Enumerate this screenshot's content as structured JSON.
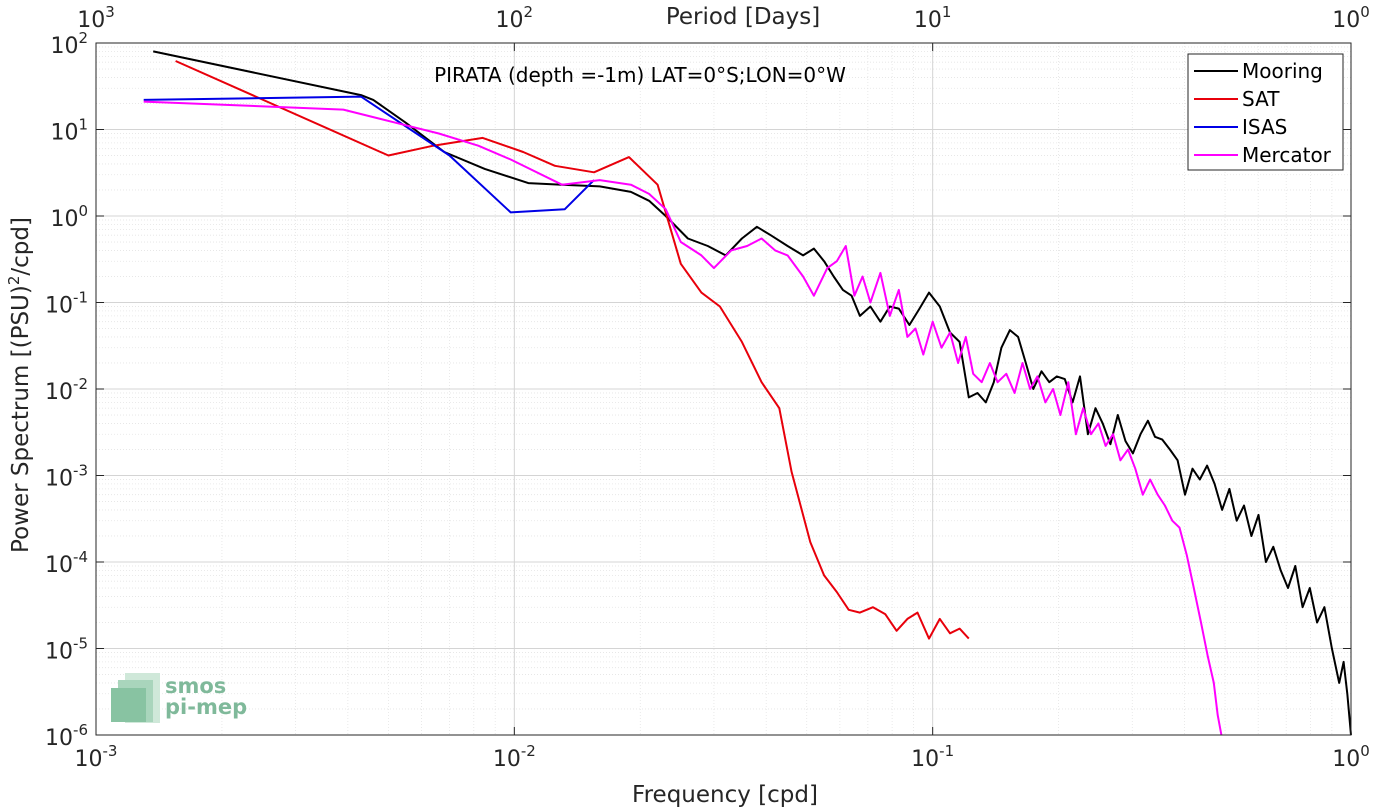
{
  "chart_data": {
    "type": "line",
    "title": "PIRATA (depth =-1m) LAT=0°S;LON=0°W",
    "xlabel": "Frequency [cpd]",
    "ylabel": "Power Spectrum [(PSU)",
    "ylabel_sup": "2",
    "ylabel_tail": "/cpd]",
    "top_xlabel": "Period [Days]",
    "xscale": "log",
    "yscale": "log",
    "xlim": [
      0.001,
      1
    ],
    "ylim": [
      1e-06,
      100
    ],
    "grid": true,
    "legend_position": "top-right",
    "x_ticks": [
      {
        "base": "10",
        "exp": "-3",
        "value": 0.001
      },
      {
        "base": "10",
        "exp": "-2",
        "value": 0.01
      },
      {
        "base": "10",
        "exp": "-1",
        "value": 0.1
      },
      {
        "base": "10",
        "exp": "0",
        "value": 1
      }
    ],
    "y_ticks": [
      {
        "base": "10",
        "exp": "-6",
        "value": 1e-06
      },
      {
        "base": "10",
        "exp": "-5",
        "value": 1e-05
      },
      {
        "base": "10",
        "exp": "-4",
        "value": 0.0001
      },
      {
        "base": "10",
        "exp": "-3",
        "value": 0.001
      },
      {
        "base": "10",
        "exp": "-2",
        "value": 0.01
      },
      {
        "base": "10",
        "exp": "-1",
        "value": 0.1
      },
      {
        "base": "10",
        "exp": "0",
        "value": 1
      },
      {
        "base": "10",
        "exp": "1",
        "value": 10
      },
      {
        "base": "10",
        "exp": "2",
        "value": 100
      }
    ],
    "top_ticks": [
      {
        "base": "10",
        "exp": "3",
        "value": 1000
      },
      {
        "base": "10",
        "exp": "2",
        "value": 100
      },
      {
        "base": "10",
        "exp": "1",
        "value": 10
      },
      {
        "base": "10",
        "exp": "0",
        "value": 1
      }
    ],
    "series": [
      {
        "name": "Mooring",
        "color": "#000000",
        "x": [
          0.00137,
          0.0043,
          0.0046,
          0.0055,
          0.0068,
          0.0085,
          0.0108,
          0.013,
          0.016,
          0.019,
          0.021,
          0.023,
          0.026,
          0.029,
          0.032,
          0.035,
          0.038,
          0.041,
          0.045,
          0.049,
          0.052,
          0.055,
          0.058,
          0.061,
          0.064,
          0.067,
          0.071,
          0.075,
          0.079,
          0.083,
          0.088,
          0.093,
          0.098,
          0.104,
          0.11,
          0.116,
          0.122,
          0.128,
          0.134,
          0.14,
          0.146,
          0.153,
          0.16,
          0.167,
          0.174,
          0.182,
          0.19,
          0.198,
          0.207,
          0.216,
          0.225,
          0.235,
          0.245,
          0.255,
          0.266,
          0.277,
          0.289,
          0.301,
          0.314,
          0.327,
          0.34,
          0.354,
          0.369,
          0.385,
          0.401,
          0.418,
          0.435,
          0.453,
          0.472,
          0.492,
          0.512,
          0.533,
          0.555,
          0.578,
          0.601,
          0.626,
          0.652,
          0.679,
          0.707,
          0.736,
          0.766,
          0.797,
          0.83,
          0.864,
          0.9,
          0.937,
          0.96,
          0.98,
          1.0
        ],
        "y": [
          80,
          25,
          22,
          12,
          5.5,
          3.5,
          2.4,
          2.3,
          2.2,
          1.9,
          1.5,
          1.0,
          0.55,
          0.45,
          0.35,
          0.55,
          0.75,
          0.6,
          0.45,
          0.35,
          0.42,
          0.3,
          0.2,
          0.14,
          0.12,
          0.07,
          0.09,
          0.06,
          0.09,
          0.085,
          0.055,
          0.085,
          0.13,
          0.09,
          0.045,
          0.035,
          0.008,
          0.009,
          0.007,
          0.012,
          0.03,
          0.048,
          0.04,
          0.02,
          0.01,
          0.016,
          0.012,
          0.014,
          0.013,
          0.007,
          0.014,
          0.003,
          0.006,
          0.004,
          0.0023,
          0.005,
          0.0025,
          0.0018,
          0.003,
          0.0043,
          0.0028,
          0.0026,
          0.002,
          0.0015,
          0.0006,
          0.0012,
          0.0009,
          0.0013,
          0.0008,
          0.0004,
          0.0007,
          0.0003,
          0.00045,
          0.0002,
          0.00035,
          0.0001,
          0.00015,
          8e-05,
          5e-05,
          9e-05,
          3e-05,
          5e-05,
          2e-05,
          3e-05,
          1e-05,
          4e-06,
          7e-06,
          3e-06,
          1e-06
        ]
      },
      {
        "name": "SAT",
        "color": "#e8000b",
        "x": [
          0.00155,
          0.005,
          0.0064,
          0.0084,
          0.0105,
          0.0125,
          0.0155,
          0.0188,
          0.022,
          0.025,
          0.028,
          0.031,
          0.035,
          0.039,
          0.043,
          0.046,
          0.051,
          0.055,
          0.059,
          0.063,
          0.067,
          0.072,
          0.077,
          0.082,
          0.087,
          0.092,
          0.098,
          0.104,
          0.11,
          0.116,
          0.122
        ],
        "y": [
          62,
          5.0,
          6.5,
          8.0,
          5.5,
          3.8,
          3.2,
          4.8,
          2.3,
          0.28,
          0.13,
          0.09,
          0.035,
          0.012,
          0.006,
          0.0011,
          0.00017,
          7e-05,
          4.5e-05,
          2.8e-05,
          2.6e-05,
          3e-05,
          2.5e-05,
          1.6e-05,
          2.2e-05,
          2.6e-05,
          1.3e-05,
          2.2e-05,
          1.5e-05,
          1.7e-05,
          1.3e-05
        ]
      },
      {
        "name": "ISAS",
        "color": "#0000e6",
        "x": [
          0.0013,
          0.0043,
          0.007,
          0.0098,
          0.0132,
          0.0155
        ],
        "y": [
          22,
          24,
          5.0,
          1.1,
          1.2,
          2.6
        ]
      },
      {
        "name": "Mercator",
        "color": "#ff00ff",
        "x": [
          0.0013,
          0.0039,
          0.0052,
          0.0066,
          0.0082,
          0.0098,
          0.013,
          0.016,
          0.019,
          0.021,
          0.023,
          0.025,
          0.028,
          0.03,
          0.033,
          0.036,
          0.039,
          0.042,
          0.045,
          0.049,
          0.052,
          0.056,
          0.059,
          0.062,
          0.065,
          0.068,
          0.071,
          0.075,
          0.079,
          0.083,
          0.087,
          0.091,
          0.095,
          0.1,
          0.105,
          0.11,
          0.115,
          0.12,
          0.125,
          0.131,
          0.137,
          0.143,
          0.15,
          0.157,
          0.164,
          0.171,
          0.178,
          0.186,
          0.194,
          0.202,
          0.211,
          0.22,
          0.229,
          0.239,
          0.249,
          0.259,
          0.27,
          0.281,
          0.293,
          0.305,
          0.318,
          0.331,
          0.345,
          0.359,
          0.374,
          0.389,
          0.405,
          0.421,
          0.438,
          0.455,
          0.47,
          0.48,
          0.49
        ],
        "y": [
          21,
          17,
          12,
          9,
          6.5,
          4.5,
          2.3,
          2.6,
          2.3,
          1.8,
          1.2,
          0.5,
          0.35,
          0.25,
          0.4,
          0.45,
          0.55,
          0.4,
          0.35,
          0.2,
          0.12,
          0.25,
          0.3,
          0.45,
          0.12,
          0.2,
          0.1,
          0.22,
          0.07,
          0.14,
          0.04,
          0.05,
          0.025,
          0.06,
          0.03,
          0.045,
          0.02,
          0.04,
          0.015,
          0.012,
          0.02,
          0.012,
          0.015,
          0.009,
          0.02,
          0.01,
          0.014,
          0.007,
          0.01,
          0.005,
          0.012,
          0.003,
          0.006,
          0.003,
          0.004,
          0.0022,
          0.003,
          0.0015,
          0.002,
          0.0012,
          0.0006,
          0.0009,
          0.0006,
          0.00045,
          0.0003,
          0.00025,
          0.00012,
          5e-05,
          2e-05,
          8e-06,
          4e-06,
          1.7e-06,
          1e-06
        ]
      }
    ]
  },
  "logo": {
    "line1": "smos",
    "line2": "pi-mep"
  }
}
